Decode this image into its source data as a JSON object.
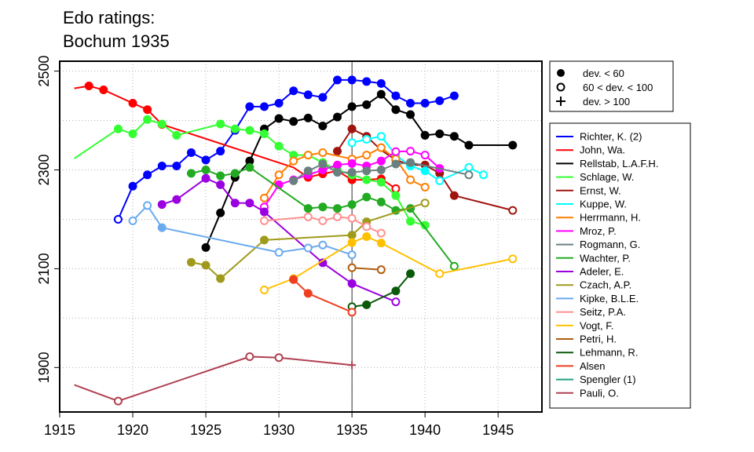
{
  "chart_data": {
    "type": "line",
    "title_lines": [
      "Edo ratings:",
      "Bochum 1935"
    ],
    "xlabel": "",
    "ylabel": "",
    "xlim": [
      1915,
      1948
    ],
    "ylim": [
      1810,
      2520
    ],
    "x_ticks": [
      1915,
      1920,
      1925,
      1930,
      1935,
      1940,
      1945
    ],
    "y_ticks": [
      1900,
      2100,
      2300,
      2500
    ],
    "grid": "dotted",
    "reference_line_x": 1935,
    "marker_legend": [
      {
        "symbol": "filled",
        "label": "dev. < 60"
      },
      {
        "symbol": "open",
        "label": "60 < dev. < 100"
      },
      {
        "symbol": "plus",
        "label": "dev. > 100"
      }
    ],
    "legend_position": "right",
    "series": [
      {
        "name": "Richter, K. (2)",
        "color": "#0000ff",
        "points": [
          [
            1919,
            2200,
            "o"
          ],
          [
            1920,
            2267,
            "f"
          ],
          [
            1921,
            2290,
            "f"
          ],
          [
            1922,
            2308,
            "f"
          ],
          [
            1923,
            2308,
            "f"
          ],
          [
            1924,
            2335,
            "f"
          ],
          [
            1925,
            2320,
            "f"
          ],
          [
            1926,
            2338,
            "f"
          ],
          [
            1927,
            2380,
            "f"
          ],
          [
            1928,
            2428,
            "f"
          ],
          [
            1929,
            2428,
            "f"
          ],
          [
            1930,
            2435,
            "f"
          ],
          [
            1931,
            2460,
            "f"
          ],
          [
            1932,
            2452,
            "f"
          ],
          [
            1933,
            2447,
            "f"
          ],
          [
            1934,
            2482,
            "f"
          ],
          [
            1935,
            2482,
            "f"
          ],
          [
            1936,
            2479,
            "f"
          ],
          [
            1937,
            2475,
            "f"
          ],
          [
            1938,
            2450,
            "f"
          ],
          [
            1939,
            2435,
            "f"
          ],
          [
            1940,
            2435,
            "f"
          ],
          [
            1941,
            2440,
            "f"
          ],
          [
            1942,
            2450,
            "f"
          ]
        ]
      },
      {
        "name": "John, Wa.",
        "color": "#ff0000",
        "points": [
          [
            1916,
            2465,
            "n"
          ],
          [
            1917,
            2470,
            "f"
          ],
          [
            1918,
            2462,
            "f"
          ],
          [
            1920,
            2435,
            "f"
          ],
          [
            1921,
            2422,
            "f"
          ],
          [
            1922,
            2392,
            "f"
          ],
          [
            1931,
            2305,
            "n"
          ],
          [
            1932,
            2285,
            "f"
          ],
          [
            1933,
            2292,
            "f"
          ],
          [
            1934,
            2298,
            "f"
          ],
          [
            1935,
            2280,
            "f"
          ],
          [
            1936,
            2280,
            "n"
          ],
          [
            1937,
            2282,
            "f"
          ],
          [
            1938,
            2262,
            "o"
          ]
        ]
      },
      {
        "name": "Rellstab, L.A.F.H.",
        "color": "#000000",
        "points": [
          [
            1925,
            2143,
            "f"
          ],
          [
            1926,
            2213,
            "f"
          ],
          [
            1927,
            2285,
            "f"
          ],
          [
            1928,
            2318,
            "f"
          ],
          [
            1929,
            2383,
            "f"
          ],
          [
            1930,
            2404,
            "f"
          ],
          [
            1931,
            2398,
            "f"
          ],
          [
            1932,
            2405,
            "f"
          ],
          [
            1933,
            2389,
            "f"
          ],
          [
            1934,
            2407,
            "f"
          ],
          [
            1935,
            2428,
            "f"
          ],
          [
            1936,
            2432,
            "f"
          ],
          [
            1937,
            2453,
            "f"
          ],
          [
            1938,
            2422,
            "f"
          ],
          [
            1939,
            2412,
            "f"
          ],
          [
            1940,
            2370,
            "f"
          ],
          [
            1941,
            2373,
            "f"
          ],
          [
            1942,
            2368,
            "f"
          ],
          [
            1943,
            2350,
            "f"
          ],
          [
            1946,
            2350,
            "f"
          ]
        ]
      },
      {
        "name": "Schlage, W.",
        "color": "#33ff33",
        "points": [
          [
            1916,
            2323,
            "n"
          ],
          [
            1919,
            2383,
            "f"
          ],
          [
            1920,
            2373,
            "f"
          ],
          [
            1921,
            2402,
            "f"
          ],
          [
            1922,
            2393,
            "f"
          ],
          [
            1923,
            2370,
            "f"
          ],
          [
            1926,
            2393,
            "f"
          ],
          [
            1927,
            2383,
            "f"
          ],
          [
            1928,
            2380,
            "f"
          ],
          [
            1929,
            2373,
            "f"
          ],
          [
            1930,
            2348,
            "f"
          ],
          [
            1931,
            2330,
            "f"
          ],
          [
            1932,
            2330,
            "f"
          ],
          [
            1933,
            2315,
            "f"
          ],
          [
            1934,
            2300,
            "f"
          ],
          [
            1935,
            2290,
            "f"
          ],
          [
            1936,
            2280,
            "f"
          ],
          [
            1937,
            2275,
            "f"
          ],
          [
            1938,
            2248,
            "f"
          ],
          [
            1939,
            2196,
            "f"
          ],
          [
            1940,
            2188,
            "f"
          ]
        ]
      },
      {
        "name": "Ernst, W.",
        "color": "#a0140f",
        "points": [
          [
            1934,
            2338,
            "f"
          ],
          [
            1935,
            2383,
            "f"
          ],
          [
            1936,
            2368,
            "f"
          ],
          [
            1937,
            2340,
            "n"
          ],
          [
            1938,
            2320,
            "f"
          ],
          [
            1939,
            2310,
            "f"
          ],
          [
            1940,
            2310,
            "f"
          ],
          [
            1941,
            2293,
            "f"
          ],
          [
            1942,
            2248,
            "f"
          ],
          [
            1946,
            2218,
            "o"
          ]
        ]
      },
      {
        "name": "Kuppe, W.",
        "color": "#00ffff",
        "points": [
          [
            1935,
            2355,
            "o"
          ],
          [
            1936,
            2362,
            "o"
          ],
          [
            1937,
            2368,
            "o"
          ],
          [
            1938,
            2330,
            "f"
          ],
          [
            1939,
            2308,
            "f"
          ],
          [
            1940,
            2298,
            "f"
          ],
          [
            1941,
            2278,
            "o"
          ],
          [
            1943,
            2305,
            "o"
          ],
          [
            1944,
            2290,
            "o"
          ]
        ]
      },
      {
        "name": "Herrmann, H.",
        "color": "#ff7f00",
        "points": [
          [
            1929,
            2243,
            "o"
          ],
          [
            1930,
            2290,
            "o"
          ],
          [
            1931,
            2318,
            "o"
          ],
          [
            1932,
            2330,
            "o"
          ],
          [
            1933,
            2335,
            "o"
          ],
          [
            1935,
            2322,
            "o"
          ],
          [
            1936,
            2330,
            "o"
          ],
          [
            1937,
            2345,
            "o"
          ],
          [
            1938,
            2322,
            "o"
          ],
          [
            1939,
            2280,
            "o"
          ],
          [
            1940,
            2265,
            "o"
          ]
        ]
      },
      {
        "name": "Mroz, P.",
        "color": "#ff00ff",
        "points": [
          [
            1929,
            2225,
            "o"
          ],
          [
            1930,
            2270,
            "f"
          ],
          [
            1931,
            2280,
            "f"
          ],
          [
            1932,
            2290,
            "f"
          ],
          [
            1933,
            2300,
            "f"
          ],
          [
            1934,
            2310,
            "f"
          ],
          [
            1935,
            2313,
            "f"
          ],
          [
            1936,
            2308,
            "f"
          ],
          [
            1937,
            2318,
            "f"
          ],
          [
            1938,
            2337,
            "o"
          ],
          [
            1939,
            2338,
            "o"
          ],
          [
            1940,
            2330,
            "o"
          ],
          [
            1941,
            2303,
            "f"
          ]
        ]
      },
      {
        "name": "Rogmann, G.",
        "color": "#6a7f7f",
        "points": [
          [
            1931,
            2278,
            "f"
          ],
          [
            1932,
            2298,
            "f"
          ],
          [
            1933,
            2312,
            "f"
          ],
          [
            1934,
            2295,
            "f"
          ],
          [
            1935,
            2295,
            "f"
          ],
          [
            1936,
            2298,
            "f"
          ],
          [
            1937,
            2300,
            "f"
          ],
          [
            1938,
            2312,
            "f"
          ],
          [
            1939,
            2315,
            "f"
          ],
          [
            1943,
            2290,
            "o"
          ]
        ]
      },
      {
        "name": "Wachter, P.",
        "color": "#22aa22",
        "points": [
          [
            1924,
            2293,
            "f"
          ],
          [
            1925,
            2300,
            "f"
          ],
          [
            1926,
            2288,
            "f"
          ],
          [
            1927,
            2293,
            "f"
          ],
          [
            1928,
            2305,
            "f"
          ],
          [
            1932,
            2222,
            "f"
          ],
          [
            1933,
            2225,
            "f"
          ],
          [
            1934,
            2222,
            "f"
          ],
          [
            1935,
            2230,
            "f"
          ],
          [
            1936,
            2245,
            "f"
          ],
          [
            1937,
            2235,
            "f"
          ],
          [
            1938,
            2218,
            "f"
          ],
          [
            1939,
            2222,
            "f"
          ],
          [
            1942,
            2105,
            "o"
          ]
        ]
      },
      {
        "name": "Adeler, E.",
        "color": "#9b00e0",
        "points": [
          [
            1922,
            2230,
            "f"
          ],
          [
            1923,
            2240,
            "f"
          ],
          [
            1925,
            2283,
            "f"
          ],
          [
            1926,
            2270,
            "f"
          ],
          [
            1927,
            2233,
            "f"
          ],
          [
            1928,
            2233,
            "f"
          ],
          [
            1929,
            2215,
            "f"
          ],
          [
            1933,
            2112,
            "f"
          ],
          [
            1935,
            2070,
            "f"
          ],
          [
            1938,
            2033,
            "o"
          ]
        ]
      },
      {
        "name": "Czach, A.P.",
        "color": "#a09a1c",
        "points": [
          [
            1924,
            2113,
            "f"
          ],
          [
            1925,
            2107,
            "f"
          ],
          [
            1926,
            2080,
            "f"
          ],
          [
            1929,
            2158,
            "f"
          ],
          [
            1935,
            2168,
            "f"
          ],
          [
            1936,
            2195,
            "f"
          ],
          [
            1940,
            2233,
            "o"
          ]
        ]
      },
      {
        "name": "Kipke, B.L.E.",
        "color": "#6aaaee",
        "points": [
          [
            1920,
            2197,
            "o"
          ],
          [
            1921,
            2228,
            "o"
          ],
          [
            1922,
            2183,
            "f"
          ],
          [
            1930,
            2133,
            "o"
          ],
          [
            1932,
            2142,
            "o"
          ],
          [
            1933,
            2148,
            "o"
          ],
          [
            1935,
            2128,
            "o"
          ]
        ]
      },
      {
        "name": "Seitz, P.A.",
        "color": "#ff9090",
        "points": [
          [
            1929,
            2197,
            "o"
          ],
          [
            1932,
            2205,
            "o"
          ],
          [
            1933,
            2197,
            "o"
          ],
          [
            1934,
            2205,
            "o"
          ],
          [
            1935,
            2202,
            "o"
          ],
          [
            1936,
            2185,
            "o"
          ],
          [
            1937,
            2172,
            "o"
          ]
        ]
      },
      {
        "name": "Vogt, F.",
        "color": "#ffc000",
        "points": [
          [
            1929,
            2057,
            "o"
          ],
          [
            1931,
            2080,
            "o"
          ],
          [
            1935,
            2153,
            "f"
          ],
          [
            1936,
            2165,
            "f"
          ],
          [
            1937,
            2152,
            "f"
          ],
          [
            1941,
            2090,
            "o"
          ],
          [
            1946,
            2120,
            "o"
          ]
        ]
      },
      {
        "name": "Petri, H.",
        "color": "#b05c10",
        "points": [
          [
            1935,
            2102,
            "o"
          ],
          [
            1937,
            2098,
            "o"
          ]
        ]
      },
      {
        "name": "Lehmann, R.",
        "color": "#0a5a0a",
        "points": [
          [
            1935,
            2023,
            "o"
          ],
          [
            1936,
            2027,
            "f"
          ],
          [
            1938,
            2055,
            "f"
          ],
          [
            1939,
            2090,
            "f"
          ]
        ]
      },
      {
        "name": "Alsen",
        "color": "#ee4020",
        "points": [
          [
            1931,
            2078,
            "f"
          ],
          [
            1932,
            2050,
            "f"
          ],
          [
            1935,
            2012,
            "o"
          ]
        ]
      },
      {
        "name": "Spengler (1)",
        "color": "#20a080",
        "points": []
      },
      {
        "name": "Pauli, O.",
        "color": "#b04050",
        "points": [
          [
            1916,
            1865,
            "n"
          ],
          [
            1919,
            1832,
            "o"
          ],
          [
            1928,
            1922,
            "o"
          ],
          [
            1930,
            1920,
            "o"
          ],
          [
            1935,
            1905,
            "p"
          ]
        ]
      }
    ]
  }
}
